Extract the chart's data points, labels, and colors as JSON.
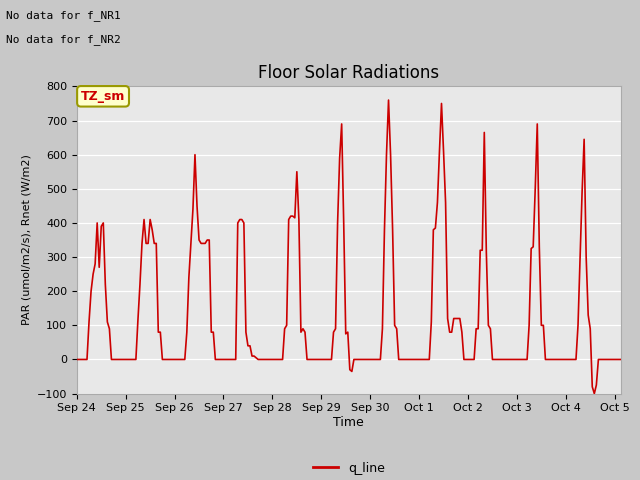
{
  "title": "Floor Solar Radiations",
  "xlabel": "Time",
  "ylabel": "PAR (umol/m2/s), Rnet (W/m2)",
  "ylim": [
    -100,
    800
  ],
  "note1": "No data for f_NR1",
  "note2": "No data for f_NR2",
  "legend_label": "q_line",
  "legend_color": "#cc0000",
  "line_color": "#cc0000",
  "fig_bg": "#c8c8c8",
  "plot_bg": "#e8e8e8",
  "tz_label": "TZ_sm",
  "tz_box_color": "#ffffcc",
  "tz_box_edge": "#999900",
  "tz_text_color": "#cc0000",
  "x_tick_labels": [
    "Sep 24",
    "Sep 25",
    "Sep 26",
    "Sep 27",
    "Sep 28",
    "Sep 29",
    "Sep 30",
    "Oct 1",
    "Oct 2",
    "Oct 3",
    "Oct 4",
    "Oct 5"
  ],
  "x_tick_positions": [
    0,
    24,
    48,
    72,
    96,
    120,
    144,
    168,
    192,
    216,
    240,
    264
  ],
  "y_ticks": [
    -100,
    0,
    100,
    200,
    300,
    400,
    500,
    600,
    700,
    800
  ],
  "data_x": [
    0,
    1,
    2,
    3,
    4,
    5,
    6,
    7,
    8,
    9,
    10,
    11,
    12,
    13,
    14,
    15,
    16,
    17,
    18,
    19,
    20,
    21,
    22,
    23,
    24,
    25,
    26,
    27,
    28,
    29,
    30,
    31,
    32,
    33,
    34,
    35,
    36,
    37,
    38,
    39,
    40,
    41,
    42,
    43,
    44,
    45,
    46,
    47,
    48,
    49,
    50,
    51,
    52,
    53,
    54,
    55,
    56,
    57,
    58,
    59,
    60,
    61,
    62,
    63,
    64,
    65,
    66,
    67,
    68,
    69,
    70,
    71,
    72,
    73,
    74,
    75,
    76,
    77,
    78,
    79,
    80,
    81,
    82,
    83,
    84,
    85,
    86,
    87,
    88,
    89,
    90,
    91,
    92,
    93,
    94,
    95,
    96,
    97,
    98,
    99,
    100,
    101,
    102,
    103,
    104,
    105,
    106,
    107,
    108,
    109,
    110,
    111,
    112,
    113,
    114,
    115,
    116,
    117,
    118,
    119,
    120,
    121,
    122,
    123,
    124,
    125,
    126,
    127,
    128,
    129,
    130,
    131,
    132,
    133,
    134,
    135,
    136,
    137,
    138,
    139,
    140,
    141,
    142,
    143,
    144,
    145,
    146,
    147,
    148,
    149,
    150,
    151,
    152,
    153,
    154,
    155,
    156,
    157,
    158,
    159,
    160,
    161,
    162,
    163,
    164,
    165,
    166,
    167,
    168,
    169,
    170,
    171,
    172,
    173,
    174,
    175,
    176,
    177,
    178,
    179,
    180,
    181,
    182,
    183,
    184,
    185,
    186,
    187,
    188,
    189,
    190,
    191,
    192,
    193,
    194,
    195,
    196,
    197,
    198,
    199,
    200,
    201,
    202,
    203,
    204,
    205,
    206,
    207,
    208,
    209,
    210,
    211,
    212,
    213,
    214,
    215,
    216,
    217,
    218,
    219,
    220,
    221,
    222,
    223,
    224,
    225,
    226,
    227,
    228,
    229,
    230,
    231,
    232,
    233,
    234,
    235,
    236,
    237,
    238,
    239,
    240,
    241,
    242,
    243,
    244,
    245,
    246,
    247,
    248,
    249,
    250,
    251,
    252,
    253,
    254,
    255,
    256,
    257,
    258,
    259,
    260,
    261,
    262,
    263,
    264,
    265,
    266,
    267
  ],
  "data_y": [
    0,
    0,
    0,
    0,
    0,
    0,
    110,
    200,
    250,
    280,
    400,
    270,
    390,
    400,
    220,
    110,
    90,
    0,
    0,
    0,
    0,
    0,
    0,
    0,
    0,
    0,
    0,
    0,
    0,
    0,
    115,
    220,
    340,
    410,
    340,
    340,
    410,
    380,
    340,
    340,
    80,
    80,
    0,
    0,
    0,
    0,
    0,
    0,
    0,
    0,
    0,
    0,
    0,
    0,
    80,
    240,
    340,
    440,
    600,
    450,
    350,
    340,
    340,
    340,
    350,
    350,
    80,
    80,
    0,
    0,
    0,
    0,
    0,
    0,
    0,
    0,
    0,
    0,
    0,
    400,
    410,
    410,
    400,
    80,
    40,
    40,
    10,
    10,
    5,
    0,
    0,
    0,
    0,
    0,
    0,
    0,
    0,
    0,
    0,
    0,
    0,
    0,
    90,
    100,
    410,
    420,
    420,
    415,
    550,
    410,
    80,
    90,
    80,
    0,
    0,
    0,
    0,
    0,
    0,
    0,
    0,
    0,
    0,
    0,
    0,
    0,
    80,
    90,
    400,
    590,
    690,
    400,
    75,
    80,
    -30,
    -35,
    0,
    0,
    0,
    0,
    0,
    0,
    0,
    0,
    0,
    0,
    0,
    0,
    0,
    0,
    90,
    380,
    600,
    760,
    600,
    380,
    100,
    90,
    0,
    0,
    0,
    0,
    0,
    0,
    0,
    0,
    0,
    0,
    0,
    0,
    0,
    0,
    0,
    0,
    110,
    380,
    385,
    460,
    610,
    750,
    610,
    460,
    120,
    80,
    80,
    120,
    120,
    120,
    120,
    80,
    0,
    0,
    0,
    0,
    0,
    0,
    90,
    90,
    320,
    320,
    665,
    315,
    100,
    90,
    0,
    0,
    0,
    0,
    0,
    0,
    0,
    0,
    0,
    0,
    0,
    0,
    0,
    0,
    0,
    0,
    0,
    0,
    100,
    325,
    330,
    500,
    690,
    330,
    100,
    100,
    0,
    0,
    0,
    0,
    0,
    0,
    0,
    0,
    0,
    0,
    0,
    0,
    0,
    0,
    0,
    0,
    100,
    300,
    490,
    645,
    300,
    130,
    90,
    -80,
    -100,
    -75,
    0,
    0,
    0,
    0,
    0,
    0,
    0,
    0,
    0,
    0,
    0,
    0
  ]
}
